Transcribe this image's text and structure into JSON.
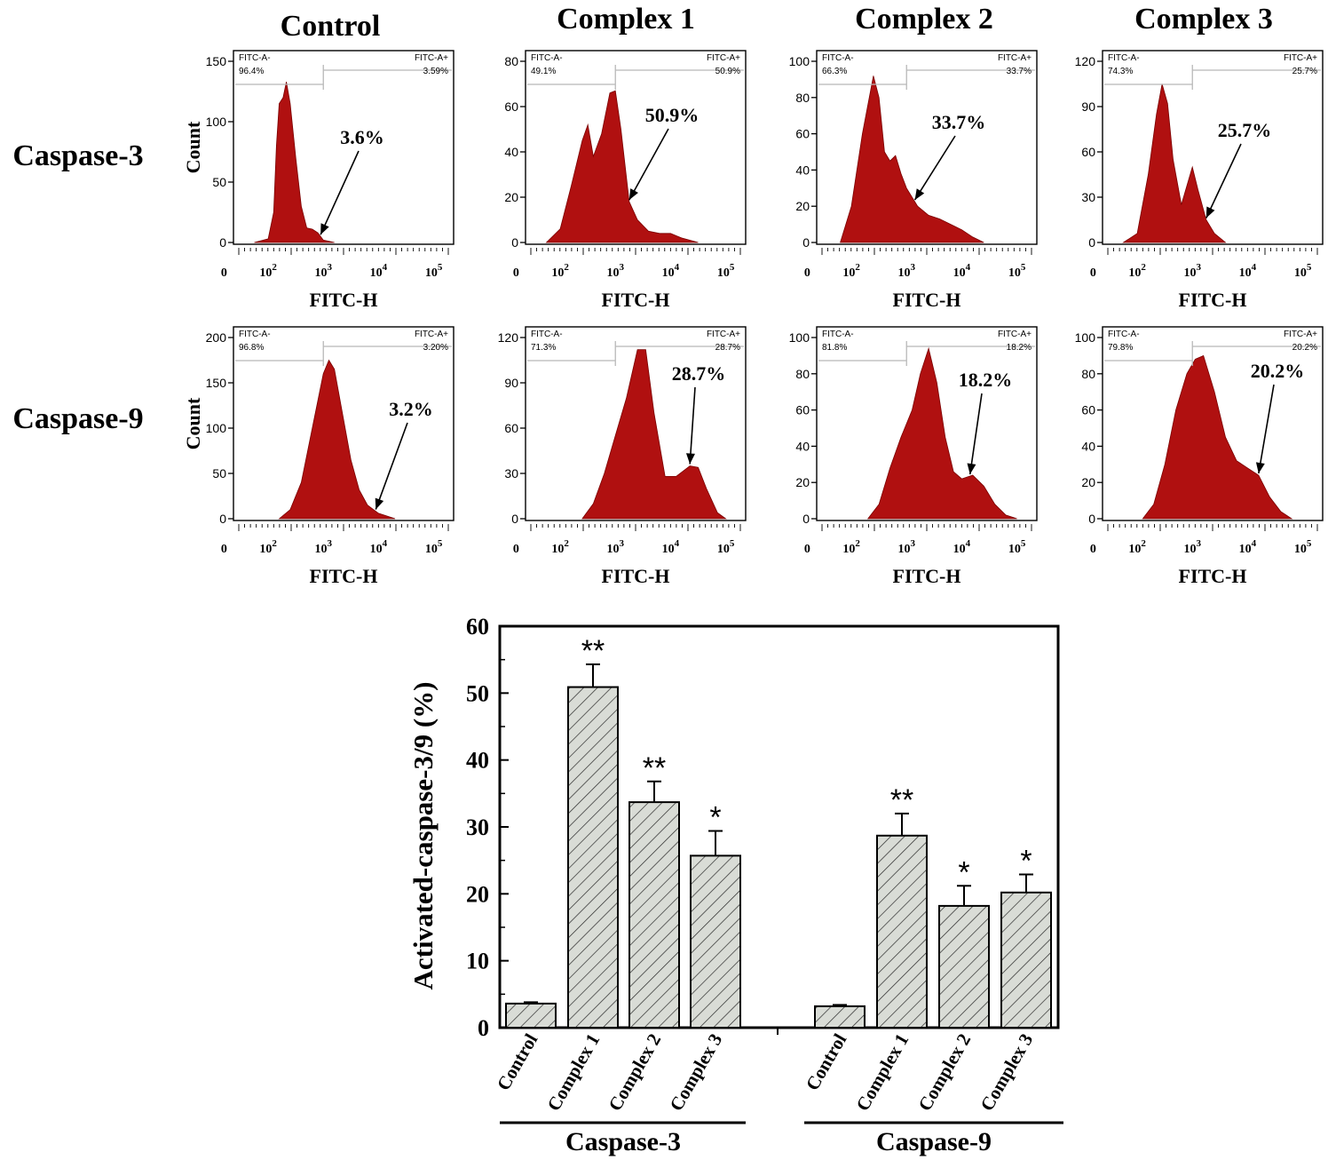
{
  "column_titles": [
    "Control",
    "Complex 1",
    "Complex 2",
    "Complex 3"
  ],
  "row_labels": [
    "Caspase-3",
    "Caspase-9"
  ],
  "colors": {
    "histogram_fill": "#b01010",
    "bar_fill": "#d9dcd6",
    "gate_line": "#b8b8b8"
  },
  "chart_data": [
    {
      "type": "histogram-grid",
      "xlabel": "FITC-H",
      "ylabel": "Count",
      "x_tick_labels": [
        "0",
        "10^2",
        "10^3",
        "10^4",
        "10^5"
      ],
      "gate_labels": {
        "negative": "FITC-A-",
        "positive": "FITC-A+"
      },
      "panels": [
        {
          "row": "Caspase-3",
          "sample": "Control",
          "ymax": 150,
          "yticks": [
            0,
            50,
            100,
            150
          ],
          "gate_neg": "96.4%",
          "gate_pos": "3.59%",
          "annotation": "3.6%",
          "profile": [
            [
              1.75,
              0
            ],
            [
              2.0,
              3
            ],
            [
              2.1,
              25
            ],
            [
              2.15,
              80
            ],
            [
              2.2,
              115
            ],
            [
              2.27,
              120
            ],
            [
              2.33,
              133
            ],
            [
              2.4,
              115
            ],
            [
              2.5,
              70
            ],
            [
              2.6,
              30
            ],
            [
              2.7,
              12
            ],
            [
              2.8,
              11
            ],
            [
              2.9,
              8
            ],
            [
              3.0,
              2
            ],
            [
              3.2,
              0
            ]
          ]
        },
        {
          "row": "Caspase-3",
          "sample": "Complex 1",
          "ymax": 80,
          "yticks": [
            0,
            20,
            40,
            60,
            80
          ],
          "gate_neg": "49.1%",
          "gate_pos": "50.9%",
          "annotation": "50.9%",
          "profile": [
            [
              1.75,
              0
            ],
            [
              2.0,
              6
            ],
            [
              2.2,
              25
            ],
            [
              2.4,
              45
            ],
            [
              2.5,
              52
            ],
            [
              2.6,
              38
            ],
            [
              2.75,
              48
            ],
            [
              2.9,
              66
            ],
            [
              3.0,
              67
            ],
            [
              3.1,
              50
            ],
            [
              3.25,
              18
            ],
            [
              3.4,
              10
            ],
            [
              3.6,
              5
            ],
            [
              3.8,
              4
            ],
            [
              4.0,
              4
            ],
            [
              4.2,
              2
            ],
            [
              4.5,
              0
            ]
          ]
        },
        {
          "row": "Caspase-3",
          "sample": "Complex 2",
          "ymax": 100,
          "yticks": [
            0,
            20,
            40,
            60,
            80,
            100
          ],
          "gate_neg": "66.3%",
          "gate_pos": "33.7%",
          "annotation": "33.7%",
          "profile": [
            [
              1.8,
              0
            ],
            [
              2.0,
              20
            ],
            [
              2.2,
              60
            ],
            [
              2.4,
              92
            ],
            [
              2.5,
              80
            ],
            [
              2.6,
              50
            ],
            [
              2.7,
              45
            ],
            [
              2.8,
              48
            ],
            [
              2.9,
              38
            ],
            [
              3.0,
              30
            ],
            [
              3.2,
              20
            ],
            [
              3.4,
              15
            ],
            [
              3.6,
              13
            ],
            [
              3.8,
              10
            ],
            [
              4.0,
              7
            ],
            [
              4.2,
              3
            ],
            [
              4.4,
              0
            ]
          ]
        },
        {
          "row": "Caspase-3",
          "sample": "Complex 3",
          "ymax": 120,
          "yticks": [
            0,
            30,
            60,
            90,
            120
          ],
          "gate_neg": "74.3%",
          "gate_pos": "25.7%",
          "annotation": "25.7%",
          "profile": [
            [
              1.75,
              0
            ],
            [
              2.0,
              6
            ],
            [
              2.2,
              45
            ],
            [
              2.35,
              85
            ],
            [
              2.45,
              105
            ],
            [
              2.55,
              92
            ],
            [
              2.65,
              55
            ],
            [
              2.8,
              25
            ],
            [
              3.0,
              50
            ],
            [
              3.1,
              35
            ],
            [
              3.25,
              15
            ],
            [
              3.4,
              6
            ],
            [
              3.6,
              0
            ]
          ]
        },
        {
          "row": "Caspase-9",
          "sample": "Control",
          "ymax": 200,
          "yticks": [
            0,
            50,
            100,
            150,
            200
          ],
          "gate_neg": "96.8%",
          "gate_pos": "3.20%",
          "annotation": "3.2%",
          "profile": [
            [
              2.2,
              0
            ],
            [
              2.4,
              10
            ],
            [
              2.6,
              40
            ],
            [
              2.8,
              100
            ],
            [
              3.0,
              160
            ],
            [
              3.1,
              175
            ],
            [
              3.2,
              165
            ],
            [
              3.35,
              115
            ],
            [
              3.5,
              65
            ],
            [
              3.65,
              32
            ],
            [
              3.8,
              15
            ],
            [
              4.0,
              6
            ],
            [
              4.3,
              0
            ]
          ]
        },
        {
          "row": "Caspase-9",
          "sample": "Complex 1",
          "ymax": 120,
          "yticks": [
            0,
            30,
            60,
            90,
            120
          ],
          "gate_neg": "71.3%",
          "gate_pos": "28.7%",
          "annotation": "28.7%",
          "profile": [
            [
              2.4,
              0
            ],
            [
              2.6,
              10
            ],
            [
              2.8,
              30
            ],
            [
              3.0,
              55
            ],
            [
              3.2,
              80
            ],
            [
              3.4,
              112
            ],
            [
              3.55,
              112
            ],
            [
              3.7,
              70
            ],
            [
              3.9,
              28
            ],
            [
              4.1,
              28
            ],
            [
              4.35,
              35
            ],
            [
              4.5,
              34
            ],
            [
              4.65,
              20
            ],
            [
              4.85,
              4
            ],
            [
              5.0,
              0
            ]
          ]
        },
        {
          "row": "Caspase-9",
          "sample": "Complex 2",
          "ymax": 100,
          "yticks": [
            0,
            20,
            40,
            60,
            80,
            100
          ],
          "gate_neg": "81.8%",
          "gate_pos": "18.2%",
          "annotation": "18.2%",
          "profile": [
            [
              2.3,
              0
            ],
            [
              2.5,
              8
            ],
            [
              2.7,
              28
            ],
            [
              2.9,
              45
            ],
            [
              3.1,
              60
            ],
            [
              3.25,
              80
            ],
            [
              3.4,
              94
            ],
            [
              3.55,
              75
            ],
            [
              3.7,
              45
            ],
            [
              3.85,
              26
            ],
            [
              4.0,
              22
            ],
            [
              4.2,
              24
            ],
            [
              4.4,
              18
            ],
            [
              4.6,
              8
            ],
            [
              4.8,
              2
            ],
            [
              5.0,
              0
            ]
          ]
        },
        {
          "row": "Caspase-9",
          "sample": "Complex 3",
          "ymax": 100,
          "yticks": [
            0,
            20,
            40,
            60,
            80,
            100
          ],
          "gate_neg": "79.8%",
          "gate_pos": "20.2%",
          "annotation": "20.2%",
          "profile": [
            [
              2.1,
              0
            ],
            [
              2.3,
              8
            ],
            [
              2.5,
              30
            ],
            [
              2.7,
              60
            ],
            [
              2.9,
              80
            ],
            [
              3.05,
              88
            ],
            [
              3.2,
              90
            ],
            [
              3.4,
              70
            ],
            [
              3.6,
              45
            ],
            [
              3.8,
              32
            ],
            [
              4.0,
              28
            ],
            [
              4.2,
              24
            ],
            [
              4.4,
              12
            ],
            [
              4.6,
              4
            ],
            [
              4.8,
              0
            ]
          ]
        }
      ]
    },
    {
      "type": "bar",
      "ylabel": "Activated-caspase-3/9 (%)",
      "ylim": [
        0,
        60
      ],
      "yticks": [
        0,
        10,
        20,
        30,
        40,
        50,
        60
      ],
      "groups": [
        {
          "name": "Caspase-3",
          "categories": [
            "Control",
            "Complex 1",
            "Complex 2",
            "Complex 3"
          ],
          "values": [
            3.6,
            50.9,
            33.7,
            25.7
          ],
          "errors": [
            0.2,
            3.4,
            3.1,
            3.7
          ],
          "significance": [
            "",
            "**",
            "**",
            "*"
          ]
        },
        {
          "name": "Caspase-9",
          "categories": [
            "Control",
            "Complex 1",
            "Complex 2",
            "Complex 3"
          ],
          "values": [
            3.2,
            28.7,
            18.2,
            20.2
          ],
          "errors": [
            0.2,
            3.3,
            3.0,
            2.7
          ],
          "significance": [
            "",
            "**",
            "*",
            "*"
          ]
        }
      ]
    }
  ]
}
